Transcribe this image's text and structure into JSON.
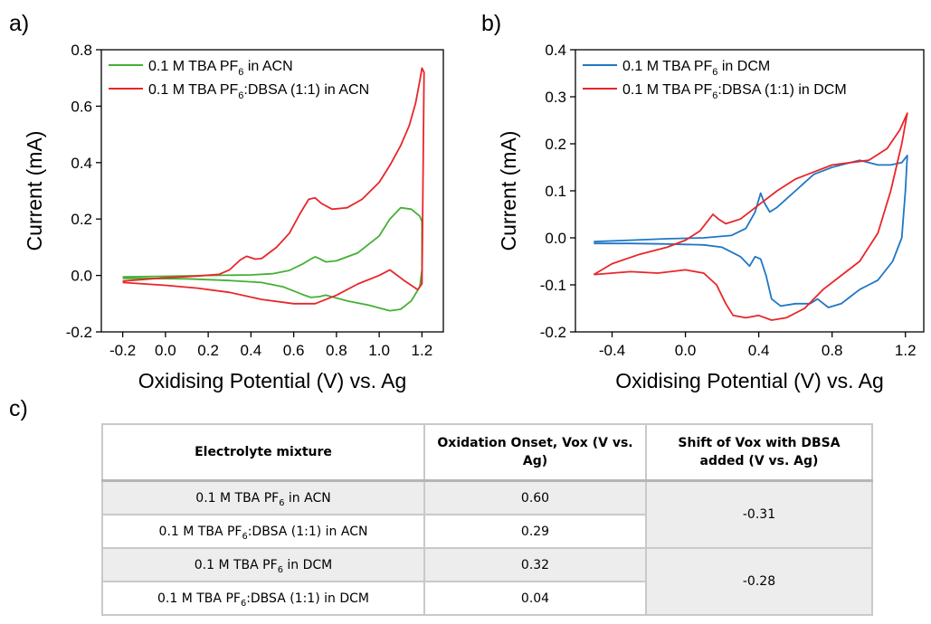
{
  "panels": {
    "a": "a)",
    "b": "b)",
    "c": "c)"
  },
  "chart_data": [
    {
      "type": "line",
      "panel": "a)",
      "xlabel": "Oxidising Potential (V) vs. Ag",
      "ylabel": "Current (mA)",
      "xlim": [
        -0.3,
        1.3
      ],
      "ylim": [
        -0.2,
        0.8
      ],
      "xticks": [
        "-0.2",
        "0.0",
        "0.2",
        "0.4",
        "0.6",
        "0.8",
        "1.0",
        "1.2"
      ],
      "yticks": [
        "-0.2",
        "0.0",
        "0.2",
        "0.4",
        "0.6",
        "0.8"
      ],
      "legend_position": "top-left",
      "series": [
        {
          "name": "0.1 M TBA PF6 in ACN",
          "legend_parts": [
            "0.1 M TBA PF",
            "6",
            " in ACN"
          ],
          "color": "#44b035",
          "points": [
            [
              -0.2,
              -0.005
            ],
            [
              0.0,
              -0.003
            ],
            [
              0.2,
              0.0
            ],
            [
              0.4,
              0.002
            ],
            [
              0.5,
              0.006
            ],
            [
              0.58,
              0.018
            ],
            [
              0.64,
              0.04
            ],
            [
              0.68,
              0.058
            ],
            [
              0.7,
              0.066
            ],
            [
              0.72,
              0.06
            ],
            [
              0.75,
              0.048
            ],
            [
              0.8,
              0.052
            ],
            [
              0.9,
              0.08
            ],
            [
              1.0,
              0.14
            ],
            [
              1.05,
              0.2
            ],
            [
              1.1,
              0.24
            ],
            [
              1.15,
              0.235
            ],
            [
              1.19,
              0.21
            ],
            [
              1.2,
              0.19
            ],
            [
              1.2,
              0.02
            ],
            [
              1.19,
              -0.04
            ],
            [
              1.15,
              -0.09
            ],
            [
              1.1,
              -0.12
            ],
            [
              1.05,
              -0.125
            ],
            [
              0.95,
              -0.105
            ],
            [
              0.85,
              -0.09
            ],
            [
              0.75,
              -0.07
            ],
            [
              0.72,
              -0.075
            ],
            [
              0.68,
              -0.078
            ],
            [
              0.65,
              -0.07
            ],
            [
              0.55,
              -0.04
            ],
            [
              0.45,
              -0.025
            ],
            [
              0.3,
              -0.018
            ],
            [
              0.1,
              -0.012
            ],
            [
              -0.2,
              -0.01
            ]
          ]
        },
        {
          "name": "0.1 M TBA PF6:DBSA (1:1) in ACN",
          "legend_parts": [
            "0.1 M TBA PF",
            "6",
            ":DBSA (1:1) in ACN"
          ],
          "color": "#e8262a",
          "points": [
            [
              -0.2,
              -0.02
            ],
            [
              0.0,
              -0.008
            ],
            [
              0.15,
              -0.002
            ],
            [
              0.25,
              0.004
            ],
            [
              0.3,
              0.02
            ],
            [
              0.35,
              0.055
            ],
            [
              0.38,
              0.068
            ],
            [
              0.42,
              0.058
            ],
            [
              0.45,
              0.06
            ],
            [
              0.52,
              0.1
            ],
            [
              0.58,
              0.15
            ],
            [
              0.63,
              0.22
            ],
            [
              0.67,
              0.27
            ],
            [
              0.7,
              0.275
            ],
            [
              0.73,
              0.255
            ],
            [
              0.78,
              0.235
            ],
            [
              0.85,
              0.24
            ],
            [
              0.92,
              0.27
            ],
            [
              1.0,
              0.33
            ],
            [
              1.05,
              0.39
            ],
            [
              1.1,
              0.46
            ],
            [
              1.14,
              0.53
            ],
            [
              1.17,
              0.61
            ],
            [
              1.19,
              0.69
            ],
            [
              1.2,
              0.735
            ],
            [
              1.21,
              0.72
            ],
            [
              1.2,
              -0.03
            ],
            [
              1.18,
              -0.05
            ],
            [
              1.12,
              -0.02
            ],
            [
              1.05,
              0.02
            ],
            [
              1.0,
              0.0
            ],
            [
              0.9,
              -0.03
            ],
            [
              0.8,
              -0.07
            ],
            [
              0.7,
              -0.1
            ],
            [
              0.6,
              -0.1
            ],
            [
              0.45,
              -0.085
            ],
            [
              0.3,
              -0.06
            ],
            [
              0.15,
              -0.045
            ],
            [
              0.0,
              -0.035
            ],
            [
              -0.2,
              -0.025
            ]
          ]
        }
      ]
    },
    {
      "type": "line",
      "panel": "b)",
      "xlabel": "Oxidising Potential (V) vs. Ag",
      "ylabel": "Current (mA)",
      "xlim": [
        -0.6,
        1.3
      ],
      "ylim": [
        -0.2,
        0.4
      ],
      "xticks": [
        "-0.4",
        "0.0",
        "0.4",
        "0.8",
        "1.2"
      ],
      "yticks": [
        "-0.2",
        "-0.1",
        "0.0",
        "0.1",
        "0.2",
        "0.3",
        "0.4"
      ],
      "legend_position": "top-left",
      "series": [
        {
          "name": "0.1 M TBA PF6 in DCM",
          "legend_parts": [
            "0.1 M TBA PF",
            "6",
            " in DCM"
          ],
          "color": "#1f77c4",
          "points": [
            [
              -0.5,
              -0.008
            ],
            [
              -0.3,
              -0.005
            ],
            [
              -0.1,
              -0.002
            ],
            [
              0.1,
              0.0
            ],
            [
              0.25,
              0.005
            ],
            [
              0.33,
              0.02
            ],
            [
              0.38,
              0.055
            ],
            [
              0.41,
              0.095
            ],
            [
              0.43,
              0.075
            ],
            [
              0.46,
              0.055
            ],
            [
              0.5,
              0.065
            ],
            [
              0.6,
              0.1
            ],
            [
              0.7,
              0.135
            ],
            [
              0.8,
              0.15
            ],
            [
              0.9,
              0.16
            ],
            [
              0.95,
              0.165
            ],
            [
              1.0,
              0.16
            ],
            [
              1.05,
              0.155
            ],
            [
              1.12,
              0.155
            ],
            [
              1.18,
              0.16
            ],
            [
              1.21,
              0.175
            ],
            [
              1.2,
              0.1
            ],
            [
              1.18,
              0.0
            ],
            [
              1.13,
              -0.05
            ],
            [
              1.05,
              -0.09
            ],
            [
              1.0,
              -0.1
            ],
            [
              0.95,
              -0.11
            ],
            [
              0.9,
              -0.125
            ],
            [
              0.85,
              -0.14
            ],
            [
              0.78,
              -0.148
            ],
            [
              0.72,
              -0.13
            ],
            [
              0.68,
              -0.14
            ],
            [
              0.6,
              -0.14
            ],
            [
              0.52,
              -0.145
            ],
            [
              0.47,
              -0.13
            ],
            [
              0.44,
              -0.08
            ],
            [
              0.41,
              -0.045
            ],
            [
              0.38,
              -0.04
            ],
            [
              0.35,
              -0.06
            ],
            [
              0.3,
              -0.04
            ],
            [
              0.2,
              -0.02
            ],
            [
              0.1,
              -0.015
            ],
            [
              -0.1,
              -0.013
            ],
            [
              -0.3,
              -0.012
            ],
            [
              -0.5,
              -0.012
            ]
          ]
        },
        {
          "name": "0.1 M TBA PF6:DBSA (1:1) in DCM",
          "legend_parts": [
            "0.1 M TBA PF",
            "6",
            ":DBSA (1:1) in DCM"
          ],
          "color": "#e8262a",
          "points": [
            [
              -0.5,
              -0.078
            ],
            [
              -0.4,
              -0.055
            ],
            [
              -0.25,
              -0.035
            ],
            [
              -0.1,
              -0.02
            ],
            [
              0.0,
              -0.005
            ],
            [
              0.08,
              0.015
            ],
            [
              0.12,
              0.035
            ],
            [
              0.15,
              0.05
            ],
            [
              0.18,
              0.04
            ],
            [
              0.22,
              0.03
            ],
            [
              0.3,
              0.04
            ],
            [
              0.4,
              0.07
            ],
            [
              0.5,
              0.1
            ],
            [
              0.6,
              0.125
            ],
            [
              0.7,
              0.14
            ],
            [
              0.8,
              0.155
            ],
            [
              0.9,
              0.16
            ],
            [
              1.0,
              0.165
            ],
            [
              1.1,
              0.19
            ],
            [
              1.17,
              0.23
            ],
            [
              1.21,
              0.265
            ],
            [
              1.18,
              0.2
            ],
            [
              1.12,
              0.1
            ],
            [
              1.05,
              0.01
            ],
            [
              0.95,
              -0.05
            ],
            [
              0.85,
              -0.08
            ],
            [
              0.75,
              -0.11
            ],
            [
              0.65,
              -0.15
            ],
            [
              0.55,
              -0.17
            ],
            [
              0.47,
              -0.175
            ],
            [
              0.4,
              -0.165
            ],
            [
              0.33,
              -0.17
            ],
            [
              0.26,
              -0.165
            ],
            [
              0.22,
              -0.14
            ],
            [
              0.17,
              -0.1
            ],
            [
              0.1,
              -0.075
            ],
            [
              0.0,
              -0.068
            ],
            [
              -0.15,
              -0.075
            ],
            [
              -0.3,
              -0.072
            ],
            [
              -0.5,
              -0.078
            ]
          ]
        }
      ]
    },
    {
      "type": "table",
      "panel": "c)",
      "columns": [
        "Electrolyte mixture",
        "Oxidation Onset, Vox (V vs. Ag)",
        "Shift of Vox with DBSA added (V vs. Ag)"
      ],
      "rows": [
        {
          "mixture": "0.1 M TBA PF6 in ACN",
          "mixture_parts": [
            "0.1 M TBA PF",
            "6",
            " in ACN"
          ],
          "onset": "0.60",
          "shift": "-0.31"
        },
        {
          "mixture": "0.1 M TBA PF6:DBSA (1:1) in ACN",
          "mixture_parts": [
            "0.1 M TBA PF",
            "6",
            ":DBSA (1:1) in ACN"
          ],
          "onset": "0.29",
          "shift": ""
        },
        {
          "mixture": "0.1 M TBA PF6 in DCM",
          "mixture_parts": [
            "0.1 M TBA PF",
            "6",
            " in DCM"
          ],
          "onset": "0.32",
          "shift": "-0.28"
        },
        {
          "mixture": "0.1 M TBA PF6:DBSA (1:1) in DCM",
          "mixture_parts": [
            "0.1 M TBA PF",
            "6",
            ":DBSA (1:1) in DCM"
          ],
          "onset": "0.04",
          "shift": ""
        }
      ]
    }
  ]
}
